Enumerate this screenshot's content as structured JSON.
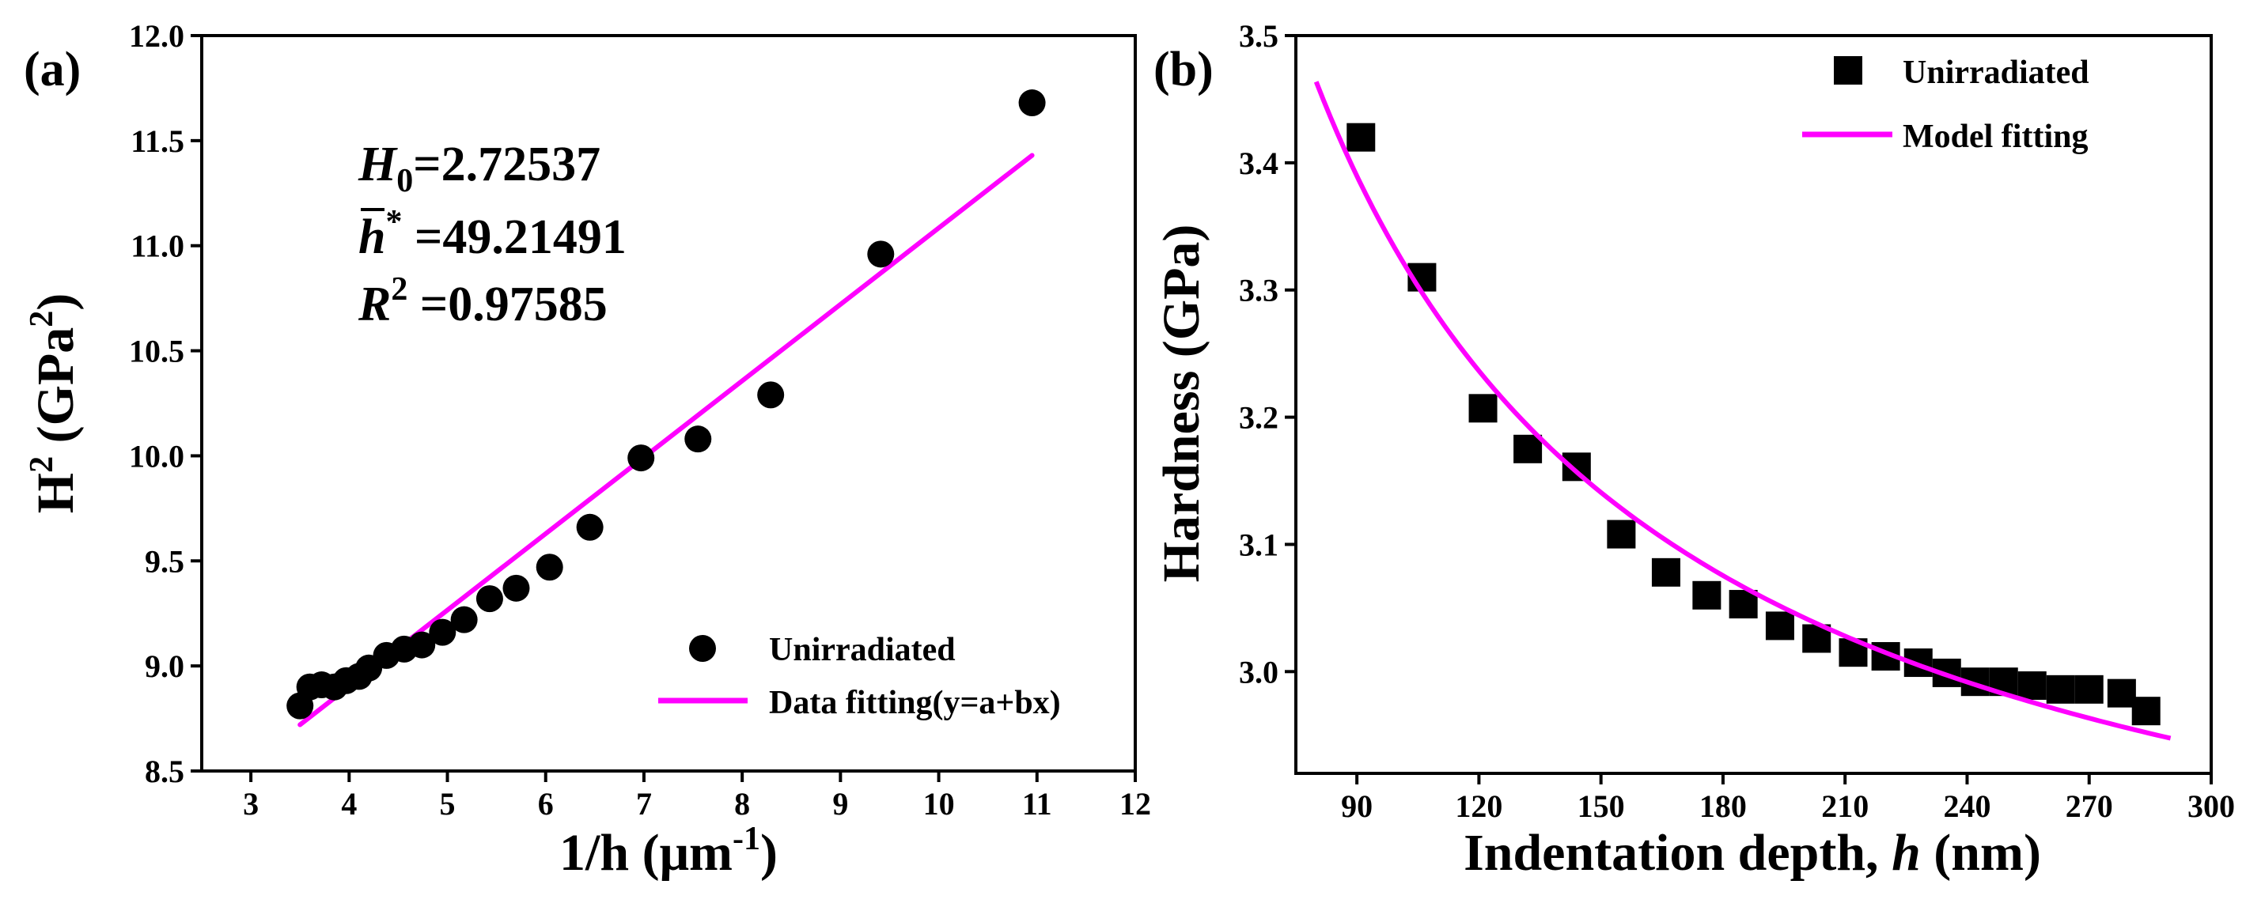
{
  "chart_data": [
    {
      "panel": "(a)",
      "type": "scatter",
      "xlabel": "1/h (μm",
      "xlabel_sup": "-1",
      "xlabel_end": ")",
      "ylabel": "H",
      "ylabel_sup": "2",
      "ylabel_unit": " (GPa",
      "ylabel_unit_sup": "2",
      "ylabel_end": ")",
      "xlim": [
        2.5,
        12
      ],
      "ylim": [
        8.5,
        12.0
      ],
      "xticks": [
        3,
        4,
        5,
        6,
        7,
        8,
        9,
        10,
        11,
        12
      ],
      "yticks": [
        8.5,
        9.0,
        9.5,
        10.0,
        10.5,
        11.0,
        11.5,
        12.0
      ],
      "ytick_labels": [
        "8.5",
        "9.0",
        "9.5",
        "10.0",
        "10.5",
        "11.0",
        "11.5",
        "12.0"
      ],
      "series": [
        {
          "name": "Unirradiated",
          "kind": "points",
          "marker": "circle",
          "color": "#000000",
          "x": [
            3.5,
            3.6,
            3.72,
            3.85,
            3.97,
            4.1,
            4.2,
            4.38,
            4.56,
            4.74,
            4.95,
            5.17,
            5.43,
            5.7,
            6.04,
            6.45,
            6.97,
            7.55,
            8.29,
            9.41,
            10.95
          ],
          "y": [
            8.81,
            8.9,
            8.91,
            8.9,
            8.93,
            8.95,
            8.99,
            9.05,
            9.08,
            9.1,
            9.16,
            9.22,
            9.32,
            9.37,
            9.47,
            9.66,
            9.99,
            10.08,
            10.29,
            10.96,
            11.68
          ]
        },
        {
          "name": "Data fitting(y=a+bx)",
          "kind": "line",
          "color": "#ff00ff",
          "x": [
            3.5,
            10.95
          ],
          "y": [
            8.72,
            11.43
          ]
        }
      ],
      "annotations": [
        {
          "var": "H",
          "sub": "0",
          "value": "=2.72537"
        },
        {
          "var": "h",
          "sup": "*",
          "value": " =49.21491"
        },
        {
          "var": "R",
          "sup": "2",
          "value": " =0.97585"
        }
      ],
      "legend_position": "bottom-right"
    },
    {
      "panel": "(b)",
      "type": "scatter",
      "xlabel": "Indentation depth, ",
      "xlabel_var": "h",
      "xlabel_end": " (nm)",
      "ylabel": "Hardness (GPa)",
      "xlim": [
        75,
        300
      ],
      "ylim": [
        2.92,
        3.5
      ],
      "xticks": [
        90,
        120,
        150,
        180,
        210,
        240,
        270,
        300
      ],
      "yticks": [
        3.0,
        3.1,
        3.2,
        3.3,
        3.4,
        3.5
      ],
      "ytick_labels": [
        "3.0",
        "3.1",
        "3.2",
        "3.3",
        "3.4",
        "3.5"
      ],
      "series": [
        {
          "name": "Unirradiated",
          "kind": "points",
          "marker": "square",
          "color": "#000000",
          "x": [
            91,
            106,
            121,
            132,
            144,
            155,
            166,
            176,
            185,
            194,
            203,
            212,
            220,
            228,
            235,
            242,
            249,
            256,
            263,
            270,
            278,
            284
          ],
          "y": [
            3.42,
            3.31,
            3.207,
            3.175,
            3.161,
            3.108,
            3.078,
            3.06,
            3.053,
            3.036,
            3.026,
            3.015,
            3.012,
            3.007,
            2.999,
            2.992,
            2.992,
            2.989,
            2.986,
            2.986,
            2.983,
            2.969
          ]
        },
        {
          "name": "Model fitting",
          "kind": "curve",
          "color": "#ff00ff",
          "H0": 2.7254,
          "hstar": 49.21491,
          "x_range": [
            80,
            290
          ]
        }
      ],
      "legend_position": "top-right"
    }
  ]
}
